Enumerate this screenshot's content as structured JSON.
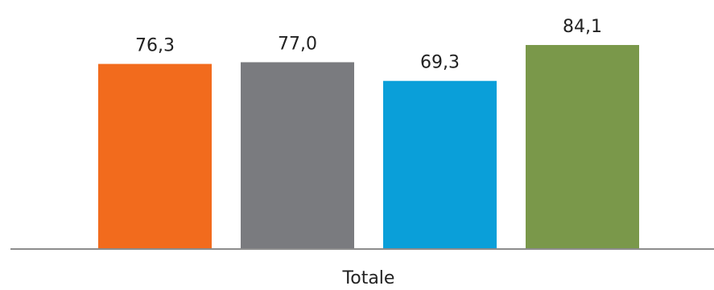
{
  "chart_data": {
    "type": "bar",
    "categories": [
      "Totale"
    ],
    "series": [
      {
        "values": [
          76.3
        ],
        "label_text": "76,3",
        "color": "#f26b1d"
      },
      {
        "values": [
          77.0
        ],
        "label_text": "77,0",
        "color": "#7a7b7f"
      },
      {
        "values": [
          69.3
        ],
        "label_text": "69,3",
        "color": "#0a9fd9"
      },
      {
        "values": [
          84.1
        ],
        "label_text": "84,1",
        "color": "#7a984a"
      }
    ],
    "category_label": "Totale",
    "axis_color": "#8c8c8c",
    "grid": false,
    "legend": "none"
  }
}
